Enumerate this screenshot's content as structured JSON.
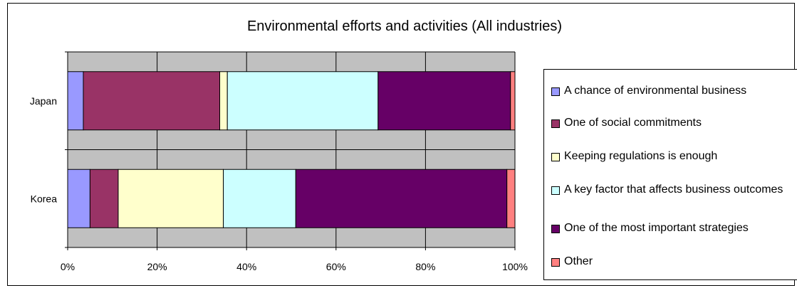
{
  "chart_data": {
    "type": "bar",
    "orientation": "horizontal",
    "stacked": "percent",
    "title": "Environmental efforts and activities (All industries)",
    "categories": [
      "Japan",
      "Korea"
    ],
    "series": [
      {
        "name": "A chance of environmental business",
        "color": "#9999ff",
        "values": [
          3.5,
          5.0
        ]
      },
      {
        "name": "One of social commitments",
        "color": "#993366",
        "values": [
          30.5,
          6.3
        ]
      },
      {
        "name": "Keeping regulations is enough",
        "color": "#ffffcc",
        "values": [
          1.7,
          23.5
        ]
      },
      {
        "name": "A key factor that affects business outcomes",
        "color": "#ccffff",
        "values": [
          33.7,
          16.2
        ]
      },
      {
        "name": "One of the most important strategies",
        "color": "#660066",
        "values": [
          29.6,
          47.2
        ]
      },
      {
        "name": "Other",
        "color": "#ff8080",
        "values": [
          1.0,
          1.8
        ]
      }
    ],
    "x_ticks": [
      "0%",
      "20%",
      "40%",
      "60%",
      "80%",
      "100%"
    ],
    "xlim": [
      0,
      100
    ],
    "grid": true,
    "plot_background": "#c0c0c0",
    "legend_position": "right"
  }
}
